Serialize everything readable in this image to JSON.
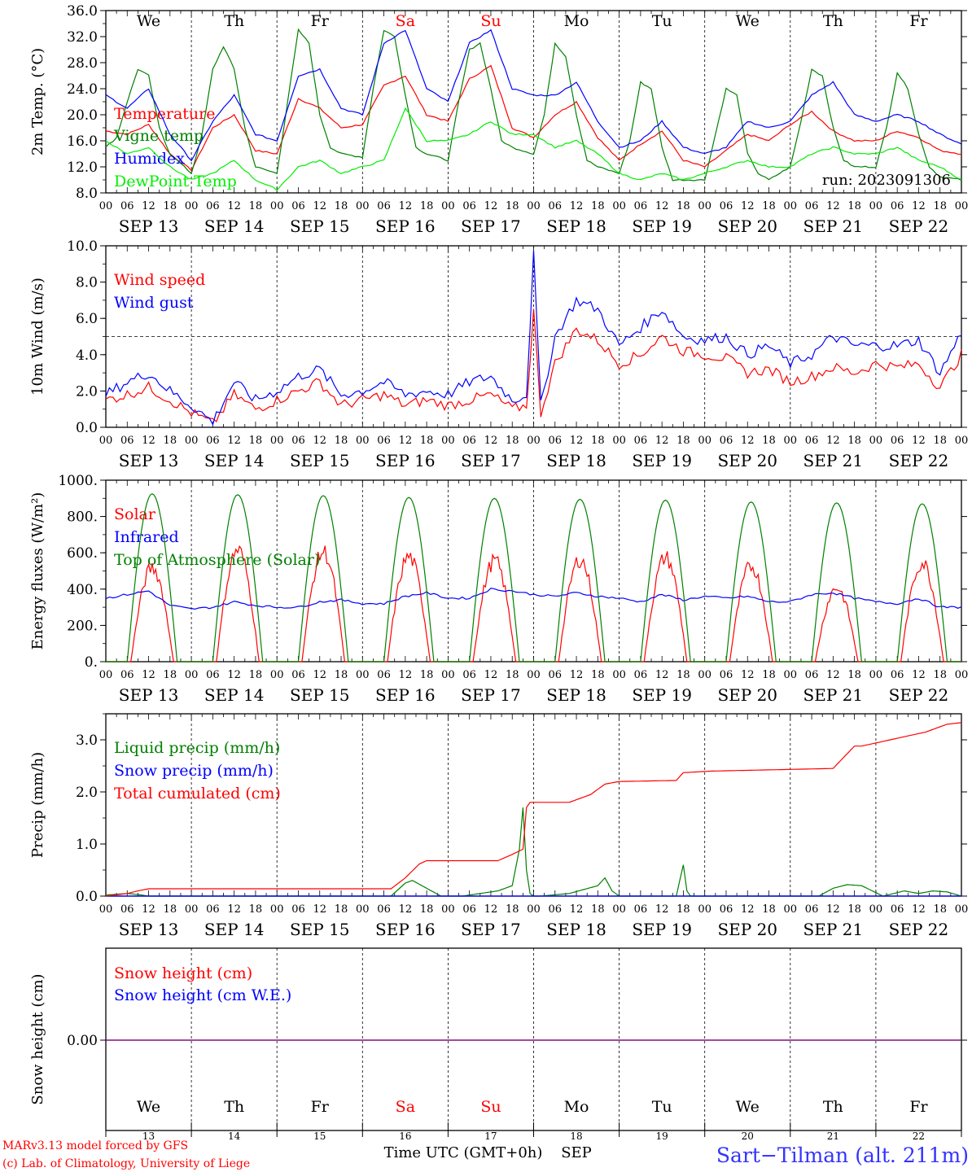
{
  "run_label": "run: 2023091306",
  "credit_lines": [
    "MARv3.13 model forced by GFS",
    "(c) Lab. of Climatology, University of Liege"
  ],
  "station_label": "Sart−Tilman (alt. 211m)",
  "xaxis_title": "Time UTC (GMT+0h)",
  "month_label": "SEP",
  "weekend_color": "#ff0000",
  "day_names": [
    "We",
    "Th",
    "Fr",
    "Sa",
    "Su",
    "Mo",
    "Tu",
    "We",
    "Th",
    "Fr"
  ],
  "weekend_flags": [
    false,
    false,
    false,
    true,
    true,
    false,
    false,
    false,
    false,
    false
  ],
  "date_labels": [
    "SEP 13",
    "SEP 14",
    "SEP 15",
    "SEP 16",
    "SEP 17",
    "SEP 18",
    "SEP 19",
    "SEP 20",
    "SEP 21",
    "SEP 22"
  ],
  "day_numbers": [
    "13",
    "14",
    "15",
    "16",
    "17",
    "18",
    "19",
    "20",
    "21",
    "22"
  ],
  "hour_labels": [
    "00",
    "06",
    "12",
    "18"
  ],
  "last_hour_label": "00",
  "chart_data": [
    {
      "type": "line",
      "ylabel": "2m Temp. (°C)",
      "ylim": [
        8,
        36
      ],
      "yticks": [
        "8.0",
        "12.0",
        "16.0",
        "20.0",
        "24.0",
        "28.0",
        "32.0",
        "36.0"
      ],
      "ytick_values": [
        8,
        12,
        16,
        20,
        24,
        28,
        32,
        36
      ],
      "x_unit": "hours since SEP 13 00 UTC",
      "legend": "top-left",
      "series": [
        {
          "name": "Temperature",
          "color": "#ff0000",
          "x": [
            0,
            6,
            12,
            18,
            24,
            30,
            36,
            42,
            48,
            54,
            60,
            66,
            72,
            78,
            84,
            90,
            96,
            102,
            108,
            114,
            120,
            126,
            132,
            138,
            144,
            150,
            156,
            162,
            168,
            174,
            180,
            186,
            192,
            198,
            204,
            210,
            216,
            222,
            228,
            234,
            240
          ],
          "y": [
            17.5,
            17,
            18.5,
            14,
            11.5,
            18,
            20,
            14.5,
            14,
            22.5,
            21,
            18,
            18.5,
            24.5,
            26,
            20,
            19,
            25.5,
            27.5,
            18,
            16.5,
            20,
            22,
            16.5,
            13,
            15.5,
            17.5,
            13,
            12,
            14.5,
            17,
            16,
            18.5,
            20.5,
            17.5,
            16,
            16,
            17.5,
            16.5,
            14.5,
            14
          ]
        },
        {
          "name": "Vigne temp",
          "color": "#008000",
          "x": [
            0,
            3,
            6,
            9,
            12,
            15,
            18,
            24,
            27,
            30,
            33,
            36,
            39,
            42,
            48,
            51,
            54,
            57,
            60,
            63,
            66,
            72,
            75,
            78,
            81,
            84,
            87,
            90,
            96,
            99,
            102,
            105,
            108,
            111,
            114,
            120,
            123,
            126,
            129,
            132,
            135,
            138,
            144,
            147,
            150,
            153,
            156,
            159,
            162,
            168,
            171,
            174,
            177,
            180,
            183,
            186,
            192,
            195,
            198,
            201,
            204,
            207,
            210,
            216,
            219,
            222,
            225,
            228,
            231,
            234,
            240
          ],
          "y": [
            15,
            16.5,
            22,
            27,
            26,
            18,
            14,
            11,
            17,
            27,
            30.5,
            27,
            18,
            12,
            11,
            22,
            33,
            31,
            20,
            15,
            14,
            13.5,
            24,
            33,
            32,
            23,
            15,
            14,
            13,
            22,
            30,
            31,
            24,
            16,
            15,
            14,
            20,
            31,
            29,
            20,
            13,
            12,
            11,
            16,
            25,
            24,
            15,
            10,
            10,
            10,
            17,
            24,
            23,
            14,
            11,
            10,
            12,
            19,
            27,
            26,
            18,
            13,
            12,
            12,
            18,
            26.5,
            24,
            17,
            12,
            10.5,
            10
          ]
        },
        {
          "name": "Humidex",
          "color": "#0000ff",
          "x": [
            0,
            6,
            12,
            18,
            24,
            30,
            36,
            42,
            48,
            54,
            60,
            66,
            72,
            78,
            84,
            90,
            96,
            102,
            108,
            114,
            120,
            126,
            132,
            138,
            144,
            150,
            156,
            162,
            168,
            174,
            180,
            186,
            192,
            198,
            204,
            210,
            216,
            222,
            228,
            234,
            240
          ],
          "y": [
            23,
            21,
            24,
            17,
            13,
            19,
            23,
            17,
            16,
            26,
            27,
            21,
            20,
            31,
            33,
            24,
            22,
            31,
            33,
            24,
            23,
            23,
            25,
            19,
            15,
            16,
            19,
            15,
            14,
            15,
            19,
            18,
            19,
            23,
            25,
            20,
            19,
            20,
            19,
            17,
            15.5
          ]
        },
        {
          "name": "DewPoint Temp",
          "color": "#00ee00",
          "x": [
            0,
            6,
            12,
            18,
            24,
            30,
            36,
            42,
            48,
            54,
            60,
            66,
            72,
            78,
            84,
            90,
            96,
            102,
            108,
            114,
            120,
            126,
            132,
            138,
            144,
            150,
            156,
            162,
            168,
            174,
            180,
            186,
            192,
            198,
            204,
            210,
            216,
            222,
            228,
            234,
            240
          ],
          "y": [
            16,
            14,
            15,
            12,
            10,
            11,
            13,
            10,
            8.5,
            12,
            13,
            11,
            12,
            13,
            21,
            16,
            16,
            17,
            19,
            17,
            17,
            15,
            16,
            14,
            11,
            10,
            11,
            10,
            11,
            12,
            13,
            12,
            12,
            14,
            15,
            14,
            14,
            15,
            13,
            12,
            10
          ]
        }
      ]
    },
    {
      "type": "line",
      "ylabel": "10m Wind (m/s)",
      "ylim": [
        0,
        10
      ],
      "yticks": [
        "0.0",
        "2.0",
        "4.0",
        "6.0",
        "8.0",
        "10.0"
      ],
      "ytick_values": [
        0,
        2,
        4,
        6,
        8,
        10
      ],
      "reference_line": 5,
      "legend": "top-left",
      "series": [
        {
          "name": "Wind speed",
          "color": "#ff0000",
          "x": [
            0,
            6,
            12,
            18,
            24,
            30,
            36,
            42,
            48,
            54,
            60,
            66,
            72,
            78,
            84,
            90,
            96,
            102,
            108,
            114,
            118,
            120,
            122,
            126,
            132,
            138,
            144,
            150,
            156,
            162,
            168,
            174,
            180,
            186,
            192,
            198,
            204,
            210,
            216,
            222,
            228,
            234,
            240
          ],
          "y": [
            1.5,
            1.8,
            2.2,
            1.5,
            0.8,
            0.2,
            1.8,
            1.0,
            1.5,
            2.0,
            2.5,
            1.2,
            1.5,
            1.8,
            1.2,
            1.5,
            1.2,
            1.5,
            1.8,
            1.0,
            1.2,
            6.4,
            0.8,
            3.5,
            5.4,
            4.8,
            3.5,
            4.0,
            5.0,
            4.2,
            4.0,
            3.8,
            3.0,
            3.2,
            2.5,
            2.8,
            3.3,
            3.0,
            3.5,
            3.3,
            3.5,
            2.2,
            4.0
          ]
        },
        {
          "name": "Wind gust",
          "color": "#0000ff",
          "x": [
            0,
            6,
            12,
            18,
            24,
            30,
            36,
            42,
            48,
            54,
            60,
            66,
            72,
            78,
            84,
            90,
            96,
            102,
            108,
            114,
            118,
            120,
            122,
            126,
            132,
            138,
            144,
            150,
            156,
            162,
            168,
            174,
            180,
            186,
            192,
            198,
            204,
            210,
            216,
            222,
            228,
            234,
            240
          ],
          "y": [
            1.8,
            2.5,
            3.0,
            2.0,
            1.2,
            0.3,
            2.5,
            1.5,
            2.0,
            2.8,
            3.2,
            1.8,
            2.0,
            2.5,
            1.8,
            2.0,
            1.8,
            2.5,
            2.8,
            1.5,
            1.8,
            9.5,
            1.2,
            5.0,
            7.0,
            6.5,
            4.5,
            5.5,
            6.5,
            5.0,
            4.8,
            5.0,
            4.0,
            4.5,
            3.5,
            4.0,
            5.0,
            4.5,
            4.5,
            4.5,
            4.8,
            3.0,
            5.2
          ]
        }
      ]
    },
    {
      "type": "line",
      "ylabel": "Energy fluxes (W/m²)",
      "ylim": [
        0,
        1000
      ],
      "yticks": [
        "0.",
        "200.",
        "400.",
        "600.",
        "800.",
        "1000."
      ],
      "ytick_values": [
        0,
        200,
        400,
        600,
        800,
        1000
      ],
      "legend": "top-left",
      "daily_peak_hour": 13,
      "series": [
        {
          "name": "Solar",
          "color": "#ff0000",
          "daily_peaks": [
            560,
            665,
            655,
            625,
            600,
            610,
            620,
            570,
            440,
            590
          ]
        },
        {
          "name": "Infrared",
          "color": "#0000ff",
          "x": [
            0,
            6,
            12,
            18,
            24,
            30,
            36,
            42,
            48,
            54,
            60,
            66,
            72,
            78,
            84,
            90,
            96,
            102,
            108,
            114,
            120,
            126,
            132,
            138,
            144,
            150,
            156,
            162,
            168,
            174,
            180,
            186,
            192,
            198,
            204,
            210,
            216,
            222,
            228,
            234,
            240
          ],
          "y": [
            350,
            370,
            390,
            310,
            290,
            300,
            330,
            310,
            300,
            300,
            330,
            340,
            320,
            320,
            360,
            380,
            350,
            350,
            400,
            390,
            370,
            360,
            380,
            360,
            350,
            330,
            370,
            340,
            360,
            350,
            360,
            330,
            330,
            370,
            380,
            350,
            330,
            320,
            350,
            300,
            300
          ]
        },
        {
          "name": "Top of Atmosphere (Solar)",
          "color": "#008000",
          "daily_peaks": [
            925,
            920,
            915,
            905,
            900,
            895,
            890,
            880,
            875,
            870
          ]
        }
      ]
    },
    {
      "type": "line",
      "ylabel": "Precip (mm/h)",
      "ylim": [
        0,
        3.5
      ],
      "yticks": [
        "0.0",
        "1.0",
        "2.0",
        "3.0"
      ],
      "ytick_values": [
        0,
        1,
        2,
        3
      ],
      "legend": "top-left",
      "series": [
        {
          "name": "Liquid precip (mm/h)",
          "color": "#008000",
          "x": [
            0,
            6,
            9,
            12,
            60,
            80,
            84,
            86,
            90,
            94,
            100,
            110,
            114,
            116,
            117,
            118,
            119,
            120,
            122,
            130,
            138,
            140,
            142,
            144,
            160,
            162,
            163,
            164,
            170,
            200,
            204,
            208,
            212,
            218,
            224,
            228,
            232,
            236,
            240
          ],
          "y": [
            0.02,
            0.05,
            0.03,
            0,
            0,
            0,
            0.25,
            0.3,
            0.15,
            0,
            0,
            0.1,
            0.2,
            0.9,
            1.7,
            0.5,
            0.05,
            0,
            0,
            0.05,
            0.2,
            0.35,
            0.1,
            0,
            0,
            0.6,
            0.1,
            0,
            0,
            0,
            0.15,
            0.22,
            0.2,
            0,
            0.1,
            0.05,
            0.1,
            0.08,
            0
          ]
        },
        {
          "name": "Snow precip (mm/h)",
          "color": "#0000ff",
          "x": [
            0,
            240
          ],
          "y": [
            0,
            0
          ]
        },
        {
          "name": "Total cumulated (cm)",
          "color": "#ff0000",
          "x": [
            0,
            6,
            9,
            12,
            80,
            84,
            88,
            90,
            110,
            114,
            117,
            118,
            119,
            120,
            130,
            136,
            140,
            144,
            160,
            162,
            170,
            204,
            210,
            212,
            220,
            230,
            236,
            240
          ],
          "y": [
            0,
            0.05,
            0.1,
            0.14,
            0.14,
            0.35,
            0.62,
            0.68,
            0.68,
            0.8,
            0.9,
            1.7,
            1.8,
            1.8,
            1.8,
            1.95,
            2.15,
            2.2,
            2.22,
            2.37,
            2.4,
            2.45,
            2.88,
            2.88,
            3.0,
            3.15,
            3.3,
            3.33
          ]
        }
      ]
    },
    {
      "type": "line",
      "ylabel": "Snow height (cm)",
      "yticks": [
        "0.00"
      ],
      "ytick_values": [
        0
      ],
      "legend": "top-left",
      "series": [
        {
          "name": "Snow height (cm)",
          "color": "#ff0000",
          "x": [
            0,
            240
          ],
          "y": [
            0,
            0
          ]
        },
        {
          "name": "Snow height (cm W.E.)",
          "color": "#0000ff",
          "x": [
            0,
            240
          ],
          "y": [
            0,
            0
          ]
        }
      ]
    }
  ]
}
